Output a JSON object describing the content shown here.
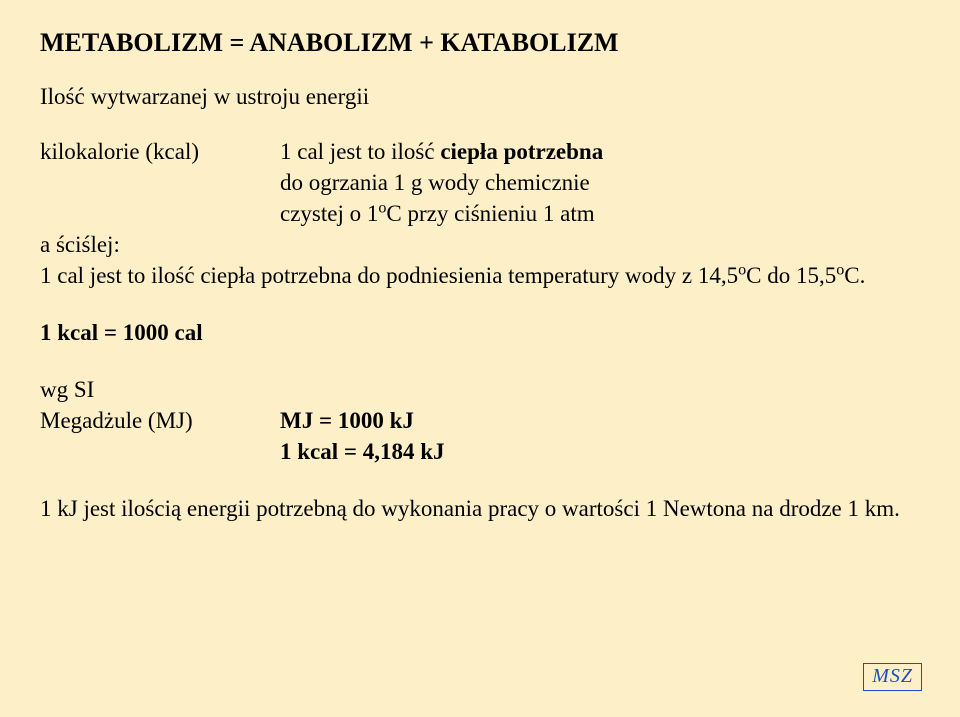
{
  "title": "METABOLIZM = ANABOLIZM + KATABOLIZM",
  "subtitle": "Ilość wytwarzanej w ustroju energii",
  "kcal_label": "kilokalorie (kcal)",
  "kcal_def_l1_pre": "1 cal jest to ilość ",
  "kcal_def_l1_bold": "ciepła potrzebna",
  "kcal_def_l2": "do ogrzania 1 g wody chemicznie",
  "kcal_def_l3_a": "czystej o 1",
  "kcal_def_l3_b": "C przy ciśnieniu 1 atm",
  "scislej": "a ściślej:",
  "scislej_def_a": "1 cal jest to ilość ciepła potrzebna do podniesienia temperatury wody z 14,5",
  "scislej_def_b": "C do 15,5",
  "scislej_def_c": "C.",
  "sup_o": "o",
  "kcal_eq": "1 kcal = 1000 cal",
  "si_label": "wg SI",
  "mj_label": "Megadżule (MJ)",
  "mj_eq": "MJ = 1000 kJ",
  "kj_eq": "1 kcal = 4,184 kJ",
  "kj_def": "1 kJ jest ilością energii potrzebną do wykonania pracy o wartości 1 Newtona na drodze 1 km.",
  "msz": "MSZ",
  "colors": {
    "background": "#fdf0c8",
    "text": "#000000",
    "accent": "#1a4fc4"
  }
}
